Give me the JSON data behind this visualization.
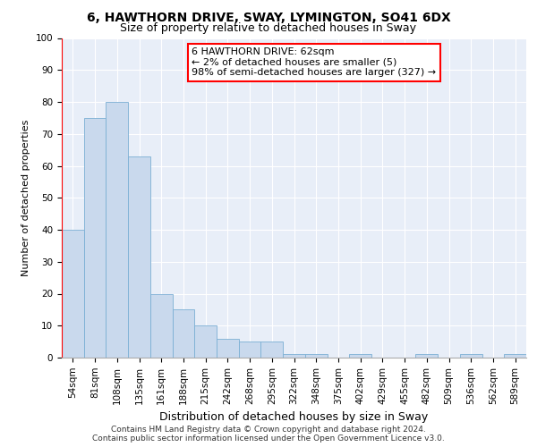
{
  "title1": "6, HAWTHORN DRIVE, SWAY, LYMINGTON, SO41 6DX",
  "title2": "Size of property relative to detached houses in Sway",
  "xlabel": "Distribution of detached houses by size in Sway",
  "ylabel": "Number of detached properties",
  "categories": [
    "54sqm",
    "81sqm",
    "108sqm",
    "135sqm",
    "161sqm",
    "188sqm",
    "215sqm",
    "242sqm",
    "268sqm",
    "295sqm",
    "322sqm",
    "348sqm",
    "375sqm",
    "402sqm",
    "429sqm",
    "455sqm",
    "482sqm",
    "509sqm",
    "536sqm",
    "562sqm",
    "589sqm"
  ],
  "values": [
    40,
    75,
    80,
    63,
    20,
    15,
    10,
    6,
    5,
    5,
    1,
    1,
    0,
    1,
    0,
    0,
    1,
    0,
    1,
    0,
    1
  ],
  "bar_color": "#c9d9ed",
  "bar_edge_color": "#7bafd4",
  "bar_width": 1.0,
  "ylim": [
    0,
    100
  ],
  "yticks": [
    0,
    10,
    20,
    30,
    40,
    50,
    60,
    70,
    80,
    90,
    100
  ],
  "annotation_text": "6 HAWTHORN DRIVE: 62sqm\n← 2% of detached houses are smaller (5)\n98% of semi-detached houses are larger (327) →",
  "annotation_box_color": "#ffffff",
  "annotation_box_edge": "#cc0000",
  "footer_text": "Contains HM Land Registry data © Crown copyright and database right 2024.\nContains public sector information licensed under the Open Government Licence v3.0.",
  "background_color": "#e8eef8",
  "grid_color": "#ffffff",
  "title1_fontsize": 10,
  "title2_fontsize": 9,
  "ylabel_fontsize": 8,
  "xlabel_fontsize": 9,
  "tick_fontsize": 7.5,
  "annot_fontsize": 8,
  "footer_fontsize": 6.5
}
